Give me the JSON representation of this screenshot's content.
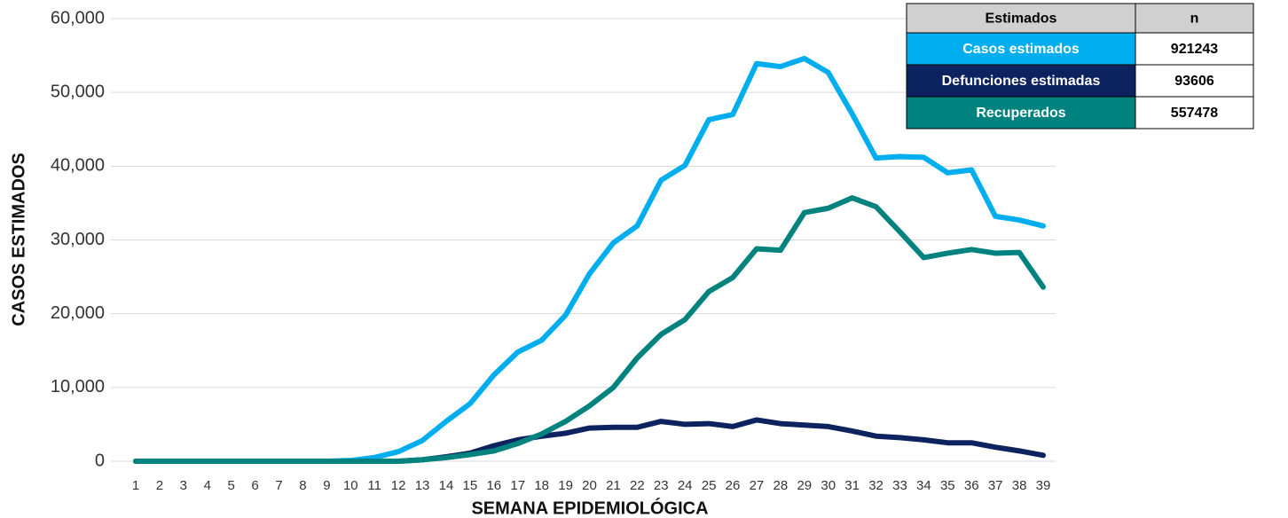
{
  "chart_data": {
    "type": "line",
    "xlabel": "SEMANA EPIDEMIOLÓGICA",
    "ylabel": "CASOS ESTIMADOS",
    "x": [
      1,
      2,
      3,
      4,
      5,
      6,
      7,
      8,
      9,
      10,
      11,
      12,
      13,
      14,
      15,
      16,
      17,
      18,
      19,
      20,
      21,
      22,
      23,
      24,
      25,
      26,
      27,
      28,
      29,
      30,
      31,
      32,
      33,
      34,
      35,
      36,
      37,
      38,
      39
    ],
    "xlim": [
      1,
      39
    ],
    "xticks": [
      1,
      2,
      3,
      4,
      5,
      6,
      7,
      8,
      9,
      10,
      11,
      12,
      13,
      14,
      15,
      16,
      17,
      18,
      19,
      20,
      21,
      22,
      23,
      24,
      25,
      26,
      27,
      28,
      29,
      30,
      31,
      32,
      33,
      34,
      35,
      36,
      37,
      38,
      39
    ],
    "ylim": [
      0,
      60000
    ],
    "yticks": [
      0,
      {
        "value": 10000,
        "label": "10,000"
      },
      {
        "value": 20000,
        "label": "20,000"
      },
      {
        "value": 30000,
        "label": "30,000"
      },
      {
        "value": 40000,
        "label": "40,000"
      },
      {
        "value": 50000,
        "label": "50,000"
      },
      {
        "value": 60000,
        "label": "60,000"
      }
    ],
    "grid": true,
    "legend": "upper right",
    "table_header": [
      "Estimados",
      "n"
    ],
    "series": [
      {
        "name": "Casos estimados",
        "color": "#00aeef",
        "total": "921243",
        "values": [
          0,
          0,
          0,
          0,
          0,
          0,
          0,
          0,
          0,
          100,
          500,
          1300,
          2800,
          5400,
          7800,
          11700,
          14800,
          16400,
          19800,
          25400,
          29600,
          31900,
          38100,
          40100,
          46300,
          47000,
          53900,
          53500,
          54600,
          52700,
          47100,
          41100,
          41300,
          41200,
          39100,
          39500,
          33200,
          32700,
          31900
        ]
      },
      {
        "name": "Defunciones estimadas",
        "color": "#0d2360",
        "total": "93606",
        "values": [
          0,
          0,
          0,
          0,
          0,
          0,
          0,
          0,
          0,
          0,
          0,
          0,
          200,
          600,
          1100,
          2100,
          2900,
          3400,
          3800,
          4500,
          4600,
          4600,
          5400,
          5000,
          5100,
          4700,
          5600,
          5100,
          4900,
          4700,
          4100,
          3400,
          3200,
          2900,
          2500,
          2500,
          1900,
          1400,
          800
        ]
      },
      {
        "name": "Recuperados",
        "color": "#00827f",
        "total": "557478",
        "values": [
          0,
          0,
          0,
          0,
          0,
          0,
          0,
          0,
          0,
          0,
          0,
          0,
          200,
          500,
          900,
          1400,
          2400,
          3700,
          5400,
          7500,
          10000,
          14000,
          17200,
          19200,
          23000,
          24900,
          28800,
          28600,
          33700,
          34300,
          35700,
          34500,
          31100,
          27600,
          28200,
          28700,
          28200,
          28300,
          23600
        ]
      }
    ]
  }
}
